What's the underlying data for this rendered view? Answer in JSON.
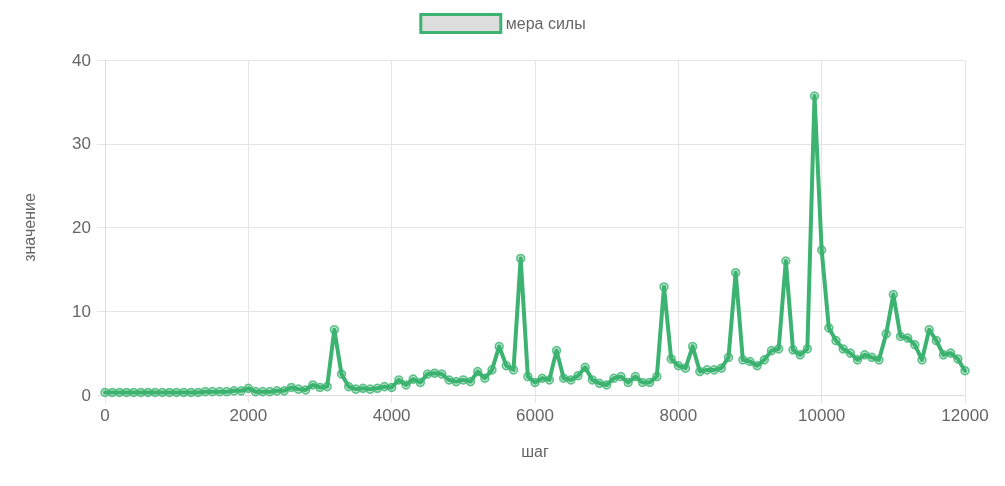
{
  "chart_data": {
    "type": "line",
    "xlabel": "шаг",
    "ylabel": "значение",
    "x": [
      0,
      100,
      200,
      300,
      400,
      500,
      600,
      700,
      800,
      900,
      1000,
      1100,
      1200,
      1300,
      1400,
      1500,
      1600,
      1700,
      1800,
      1900,
      2000,
      2100,
      2200,
      2300,
      2400,
      2500,
      2600,
      2700,
      2800,
      2900,
      3000,
      3100,
      3200,
      3300,
      3400,
      3500,
      3600,
      3700,
      3800,
      3900,
      4000,
      4100,
      4200,
      4300,
      4400,
      4500,
      4600,
      4700,
      4800,
      4900,
      5000,
      5100,
      5200,
      5300,
      5400,
      5500,
      5600,
      5700,
      5800,
      5900,
      6000,
      6100,
      6200,
      6300,
      6400,
      6500,
      6600,
      6700,
      6800,
      6900,
      7000,
      7100,
      7200,
      7300,
      7400,
      7500,
      7600,
      7700,
      7800,
      7900,
      8000,
      8100,
      8200,
      8300,
      8400,
      8500,
      8600,
      8700,
      8800,
      8900,
      9000,
      9100,
      9200,
      9300,
      9400,
      9500,
      9600,
      9700,
      9800,
      9900,
      10000,
      10100,
      10200,
      10300,
      10400,
      10500,
      10600,
      10700,
      10800,
      10900,
      11000,
      11100,
      11200,
      11300,
      11400,
      11500,
      11600,
      11700,
      11800,
      11900,
      12000
    ],
    "series": [
      {
        "name": "мера силы",
        "color": "#3cb371",
        "values": [
          0.3,
          0.3,
          0.3,
          0.3,
          0.3,
          0.3,
          0.3,
          0.3,
          0.3,
          0.3,
          0.3,
          0.3,
          0.3,
          0.3,
          0.4,
          0.4,
          0.4,
          0.4,
          0.5,
          0.5,
          0.8,
          0.4,
          0.4,
          0.4,
          0.5,
          0.5,
          0.9,
          0.7,
          0.6,
          1.2,
          0.9,
          1.0,
          7.8,
          2.5,
          1.0,
          0.7,
          0.8,
          0.7,
          0.8,
          1.0,
          0.9,
          1.8,
          1.2,
          1.9,
          1.5,
          2.5,
          2.6,
          2.5,
          1.8,
          1.6,
          1.8,
          1.6,
          2.8,
          2.0,
          3.0,
          5.8,
          3.5,
          3.0,
          16.3,
          2.2,
          1.5,
          2.0,
          1.8,
          5.3,
          2.0,
          1.8,
          2.3,
          3.3,
          1.8,
          1.4,
          1.2,
          2.0,
          2.2,
          1.5,
          2.2,
          1.5,
          1.5,
          2.2,
          12.9,
          4.3,
          3.5,
          3.2,
          5.8,
          2.8,
          3.0,
          3.0,
          3.2,
          4.5,
          14.6,
          4.2,
          4.0,
          3.5,
          4.2,
          5.3,
          5.5,
          16.0,
          5.4,
          4.8,
          5.5,
          35.7,
          17.3,
          8.0,
          6.5,
          5.5,
          5.0,
          4.2,
          4.8,
          4.5,
          4.2,
          7.3,
          12.0,
          7.0,
          6.8,
          6.0,
          4.2,
          7.8,
          6.5,
          4.8,
          5.0,
          4.3,
          2.9
        ]
      }
    ],
    "xlim": [
      0,
      12000
    ],
    "xticks": [
      0,
      2000,
      4000,
      6000,
      8000,
      10000,
      12000
    ],
    "ylim": [
      0,
      40
    ],
    "yticks": [
      0,
      10,
      20,
      30,
      40
    ],
    "grid": true,
    "legend": "top",
    "marker": "circle",
    "line_style": "solid"
  }
}
